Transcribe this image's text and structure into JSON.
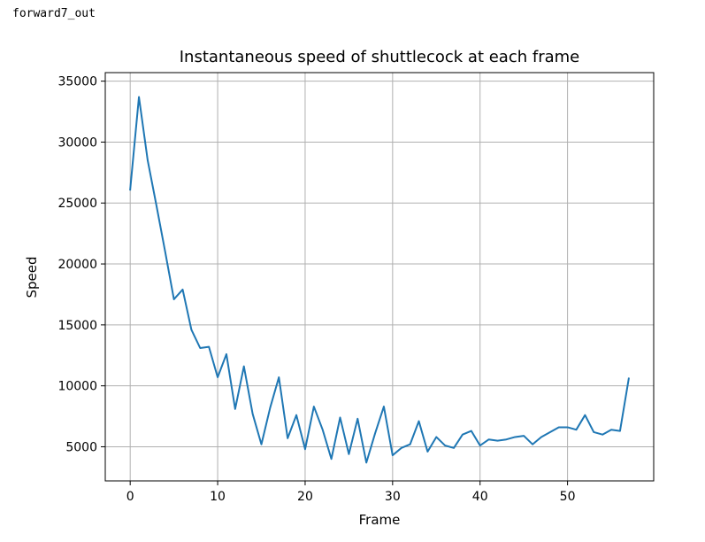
{
  "output_label": "forward7_out",
  "chart_data": {
    "type": "line",
    "title": "Instantaneous speed of shuttlecock at each frame",
    "xlabel": "Frame",
    "ylabel": "Speed",
    "xlim": [
      -2.85,
      59.85
    ],
    "ylim": [
      2200,
      35700
    ],
    "xticks": [
      0,
      10,
      20,
      30,
      40,
      50
    ],
    "yticks": [
      5000,
      10000,
      15000,
      20000,
      25000,
      30000,
      35000
    ],
    "grid": true,
    "line_color": "#1f77b4",
    "series": [
      {
        "x": [
          0,
          1,
          2,
          3,
          4,
          5,
          6,
          7,
          8,
          9,
          10,
          11,
          12,
          13,
          14,
          15,
          16,
          17,
          18,
          19,
          20,
          21,
          22,
          23,
          24,
          25,
          26,
          27,
          28,
          29,
          30,
          31,
          32,
          33,
          34,
          35,
          36,
          37,
          38,
          39,
          40,
          41,
          42,
          43,
          44,
          45,
          46,
          47,
          48,
          49,
          50,
          51,
          52,
          53,
          54,
          55,
          56,
          57
        ],
        "values": [
          26100,
          33700,
          28500,
          24800,
          21000,
          17100,
          17900,
          14600,
          13100,
          13200,
          10700,
          12600,
          8100,
          11600,
          7700,
          5200,
          8200,
          10700,
          5700,
          7600,
          4800,
          8300,
          6400,
          4000,
          7400,
          4400,
          7300,
          3700,
          6100,
          8300,
          4300,
          4900,
          5200,
          7100,
          4600,
          5800,
          5100,
          4900,
          6000,
          6300,
          5100,
          5600,
          5500,
          5600,
          5800,
          5900,
          5200,
          5800,
          6200,
          6600,
          6600,
          6400,
          7600,
          6200,
          6000,
          6400,
          6300,
          10600
        ]
      }
    ]
  }
}
